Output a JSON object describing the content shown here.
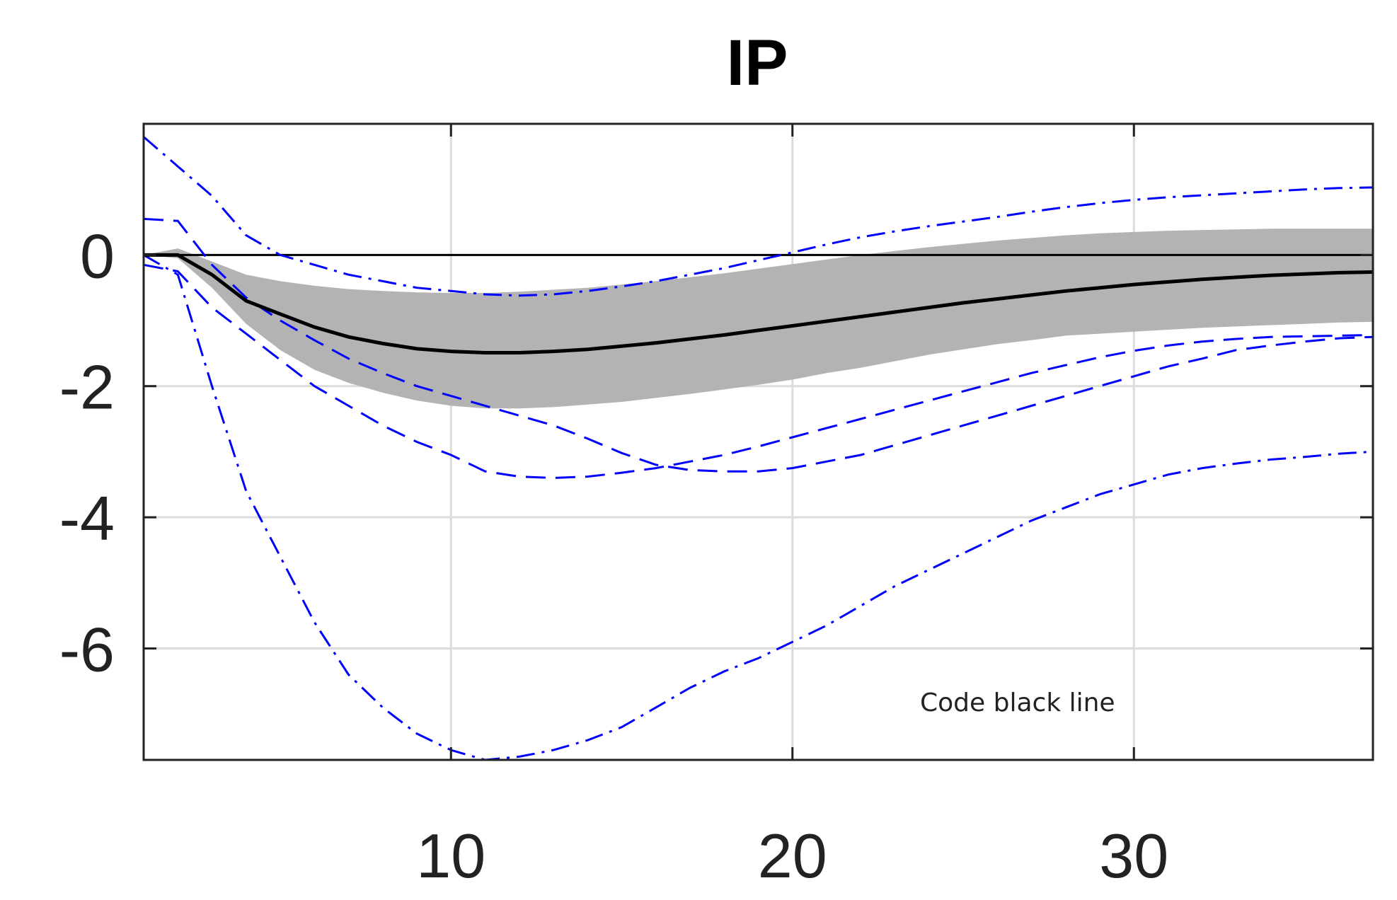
{
  "chart_data": {
    "type": "line",
    "title": "IP",
    "xlabel": "",
    "ylabel": "",
    "xlim": [
      1,
      37
    ],
    "ylim": [
      -7.7,
      2
    ],
    "xticks": [
      10,
      20,
      30
    ],
    "yticks": [
      0,
      -2,
      -4,
      -6
    ],
    "xtick_labels": [
      "10",
      "20",
      "30"
    ],
    "ytick_labels": [
      "0",
      "-2",
      "-4",
      "-6"
    ],
    "grid": true,
    "annotation": "Code black line",
    "colors": {
      "median": "#000000",
      "band": "#b3b3b3",
      "bounds": "#0000ff",
      "zero": "#000000",
      "grid": "#dcdcdc"
    },
    "x": [
      1,
      2,
      3,
      4,
      5,
      6,
      7,
      8,
      9,
      10,
      11,
      12,
      13,
      14,
      15,
      16,
      17,
      18,
      19,
      20,
      21,
      22,
      23,
      24,
      25,
      26,
      27,
      28,
      29,
      30,
      31,
      32,
      33,
      34,
      35,
      36,
      37
    ],
    "median": [
      0,
      0,
      -0.3,
      -0.7,
      -0.9,
      -1.1,
      -1.25,
      -1.35,
      -1.43,
      -1.47,
      -1.49,
      -1.49,
      -1.47,
      -1.44,
      -1.39,
      -1.34,
      -1.28,
      -1.22,
      -1.15,
      -1.08,
      -1.01,
      -0.94,
      -0.87,
      -0.8,
      -0.73,
      -0.67,
      -0.61,
      -0.55,
      -0.5,
      -0.45,
      -0.41,
      -0.37,
      -0.34,
      -0.31,
      -0.29,
      -0.27,
      -0.26
    ],
    "band_upper": [
      0,
      0.1,
      -0.1,
      -0.3,
      -0.4,
      -0.47,
      -0.52,
      -0.55,
      -0.57,
      -0.58,
      -0.58,
      -0.56,
      -0.53,
      -0.5,
      -0.45,
      -0.4,
      -0.34,
      -0.28,
      -0.21,
      -0.14,
      -0.07,
      0,
      0.06,
      0.12,
      0.17,
      0.22,
      0.26,
      0.3,
      0.33,
      0.35,
      0.37,
      0.38,
      0.39,
      0.4,
      0.4,
      0.4,
      0.4
    ],
    "band_lower": [
      0,
      -0.05,
      -0.5,
      -1.05,
      -1.45,
      -1.75,
      -1.95,
      -2.1,
      -2.22,
      -2.3,
      -2.34,
      -2.34,
      -2.32,
      -2.28,
      -2.24,
      -2.18,
      -2.12,
      -2.05,
      -1.98,
      -1.9,
      -1.8,
      -1.72,
      -1.62,
      -1.52,
      -1.44,
      -1.36,
      -1.3,
      -1.23,
      -1.2,
      -1.17,
      -1.14,
      -1.11,
      -1.09,
      -1.07,
      -1.05,
      -1.03,
      -1.02
    ],
    "dashed_upper": [
      0.55,
      0.52,
      -0.15,
      -0.65,
      -1.0,
      -1.3,
      -1.58,
      -1.8,
      -2.0,
      -2.15,
      -2.3,
      -2.45,
      -2.6,
      -2.8,
      -3.02,
      -3.2,
      -3.28,
      -3.3,
      -3.3,
      -3.25,
      -3.15,
      -3.05,
      -2.9,
      -2.75,
      -2.6,
      -2.45,
      -2.3,
      -2.15,
      -2.0,
      -1.85,
      -1.7,
      -1.58,
      -1.45,
      -1.38,
      -1.32,
      -1.27,
      -1.25
    ],
    "dashed_lower": [
      -0.15,
      -0.25,
      -0.8,
      -1.2,
      -1.6,
      -2.0,
      -2.3,
      -2.6,
      -2.85,
      -3.05,
      -3.3,
      -3.38,
      -3.4,
      -3.38,
      -3.32,
      -3.25,
      -3.15,
      -3.05,
      -2.92,
      -2.78,
      -2.64,
      -2.5,
      -2.36,
      -2.22,
      -2.08,
      -1.94,
      -1.8,
      -1.68,
      -1.56,
      -1.46,
      -1.38,
      -1.32,
      -1.28,
      -1.25,
      -1.24,
      -1.23,
      -1.22
    ],
    "dashdot_upper": [
      1.8,
      1.35,
      0.9,
      0.3,
      0.0,
      -0.15,
      -0.3,
      -0.4,
      -0.5,
      -0.55,
      -0.6,
      -0.62,
      -0.6,
      -0.55,
      -0.48,
      -0.4,
      -0.3,
      -0.2,
      -0.08,
      0.04,
      0.16,
      0.27,
      0.36,
      0.44,
      0.51,
      0.58,
      0.66,
      0.73,
      0.79,
      0.84,
      0.88,
      0.91,
      0.94,
      0.97,
      1.0,
      1.02,
      1.03
    ],
    "dashdot_lower": [
      0,
      -0.3,
      -2.0,
      -3.6,
      -4.6,
      -5.6,
      -6.4,
      -6.9,
      -7.3,
      -7.55,
      -7.7,
      -7.65,
      -7.55,
      -7.4,
      -7.2,
      -6.9,
      -6.6,
      -6.35,
      -6.15,
      -5.9,
      -5.65,
      -5.35,
      -5.05,
      -4.8,
      -4.55,
      -4.3,
      -4.05,
      -3.85,
      -3.65,
      -3.5,
      -3.35,
      -3.25,
      -3.18,
      -3.12,
      -3.08,
      -3.03,
      -3.0
    ]
  }
}
